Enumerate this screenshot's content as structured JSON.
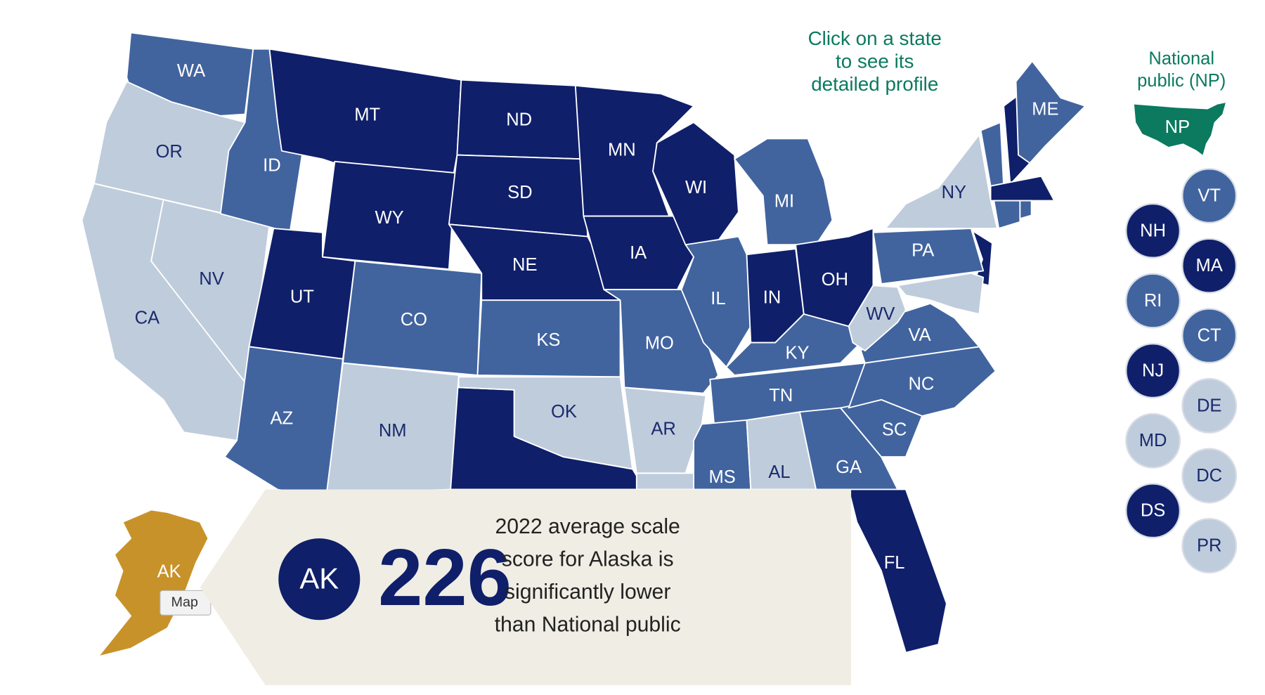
{
  "instruction_lines": [
    "Click on a state",
    "to see its",
    "detailed profile"
  ],
  "national_public": {
    "label_lines": [
      "National",
      "public (NP)"
    ],
    "abbr": "NP",
    "color": "#0b7a5f"
  },
  "states": [
    {
      "label": "WA",
      "color": "#41649f"
    },
    {
      "label": "OR",
      "color": "#bfccdc"
    },
    {
      "label": "CA",
      "color": "#bfccdc"
    },
    {
      "label": "NV",
      "color": "#bfccdc"
    },
    {
      "label": "ID",
      "color": "#41649f"
    },
    {
      "label": "MT",
      "color": "#0f1f6a"
    },
    {
      "label": "WY",
      "color": "#0f1f6a"
    },
    {
      "label": "UT",
      "color": "#0f1f6a"
    },
    {
      "label": "CO",
      "color": "#41649f"
    },
    {
      "label": "AZ",
      "color": "#41649f"
    },
    {
      "label": "NM",
      "color": "#bfccdc"
    },
    {
      "label": "ND",
      "color": "#0f1f6a"
    },
    {
      "label": "SD",
      "color": "#0f1f6a"
    },
    {
      "label": "NE",
      "color": "#0f1f6a"
    },
    {
      "label": "KS",
      "color": "#41649f"
    },
    {
      "label": "OK",
      "color": "#bfccdc"
    },
    {
      "label": "MN",
      "color": "#0f1f6a"
    },
    {
      "label": "IA",
      "color": "#0f1f6a"
    },
    {
      "label": "MO",
      "color": "#41649f"
    },
    {
      "label": "AR",
      "color": "#bfccdc"
    },
    {
      "label": "WI",
      "color": "#0f1f6a"
    },
    {
      "label": "IL",
      "color": "#41649f"
    },
    {
      "label": "MI",
      "color": "#41649f"
    },
    {
      "label": "IN",
      "color": "#0f1f6a"
    },
    {
      "label": "OH",
      "color": "#0f1f6a"
    },
    {
      "label": "KY",
      "color": "#41649f"
    },
    {
      "label": "TN",
      "color": "#41649f"
    },
    {
      "label": "MS",
      "color": "#41649f"
    },
    {
      "label": "AL",
      "color": "#bfccdc"
    },
    {
      "label": "GA",
      "color": "#41649f"
    },
    {
      "label": "FL",
      "color": "#0f1f6a"
    },
    {
      "label": "SC",
      "color": "#41649f"
    },
    {
      "label": "NC",
      "color": "#41649f"
    },
    {
      "label": "VA",
      "color": "#41649f"
    },
    {
      "label": "WV",
      "color": "#bfccdc"
    },
    {
      "label": "PA",
      "color": "#41649f"
    },
    {
      "label": "NY",
      "color": "#bfccdc"
    },
    {
      "label": "ME",
      "color": "#41649f"
    }
  ],
  "small_states": [
    {
      "label": "VT",
      "color": "#41649f"
    },
    {
      "label": "NH",
      "color": "#0f1f6a"
    },
    {
      "label": "MA",
      "color": "#0f1f6a"
    },
    {
      "label": "RI",
      "color": "#41649f"
    },
    {
      "label": "CT",
      "color": "#41649f"
    },
    {
      "label": "NJ",
      "color": "#0f1f6a"
    },
    {
      "label": "DE",
      "color": "#bfccdc"
    },
    {
      "label": "MD",
      "color": "#bfccdc"
    },
    {
      "label": "DC",
      "color": "#bfccdc"
    },
    {
      "label": "DS",
      "color": "#0f1f6a"
    },
    {
      "label": "PR",
      "color": "#bfccdc"
    }
  ],
  "alaska": {
    "label": "AK",
    "color": "#c8922a"
  },
  "tooltip": {
    "state": "AK",
    "score": 226,
    "description_lines": [
      "2022 average scale",
      "score for Alaska is",
      "significantly lower",
      "than National public"
    ]
  },
  "map_tooltip": "Map"
}
